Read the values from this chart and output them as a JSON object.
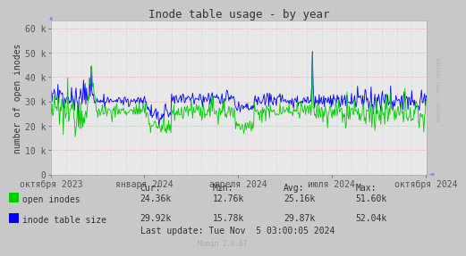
{
  "title": "Inode table usage - by year",
  "ylabel": "number of open inodes",
  "background_color": "#c8c8c8",
  "plot_bg_color": "#e8e8e8",
  "title_fontsize": 9,
  "axis_fontsize": 7,
  "stats_fontsize": 7,
  "yticks": [
    0,
    10000,
    20000,
    30000,
    40000,
    50000,
    60000
  ],
  "ytick_labels": [
    "0",
    "10 k",
    "20 k",
    "30 k",
    "40 k",
    "50 k",
    "60 k"
  ],
  "ylim": [
    0,
    63000
  ],
  "xtick_labels": [
    "октября 2023",
    "января 2024",
    "апреля 2024",
    "июля 2024",
    "октября 2024"
  ],
  "legend": [
    {
      "label": "open inodes",
      "color": "#00cc00"
    },
    {
      "label": "inode table size",
      "color": "#0000ff"
    }
  ],
  "stats": {
    "open_inodes": {
      "cur": "24.36k",
      "min": "12.76k",
      "avg": "25.16k",
      "max": "51.60k"
    },
    "inode_table_size": {
      "cur": "29.92k",
      "min": "15.78k",
      "avg": "29.87k",
      "max": "52.04k"
    }
  },
  "last_update": "Last update: Tue Nov  5 03:00:05 2024",
  "munin_version": "Munin 2.0.67",
  "rrdtool_label": "RRDTOOL / TOBI OETIKER",
  "hgrid_color": "#ff6060",
  "vgrid_color": "#aaaaff",
  "spine_color": "#aaaaaa",
  "arrow_color": "#8888ff"
}
